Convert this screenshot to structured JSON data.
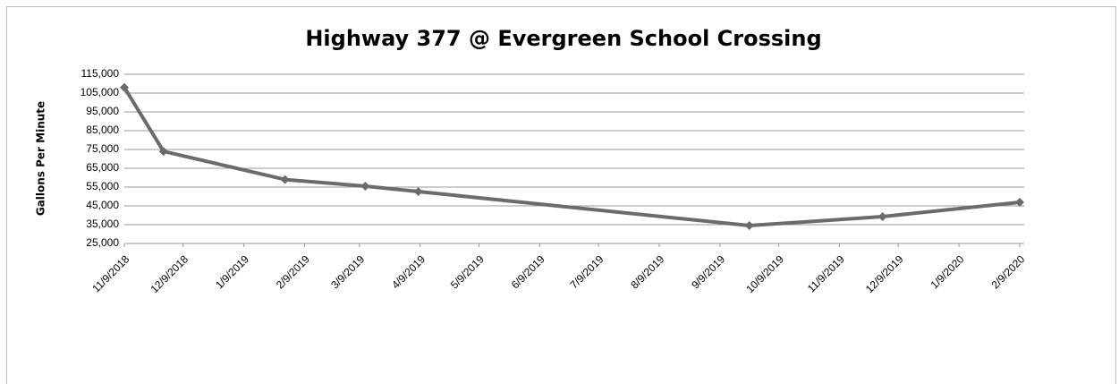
{
  "chart_data": {
    "type": "line",
    "title": "Highway 377 @ Evergreen School Crossing",
    "y_label": "Gallons Per Minute",
    "x": [
      "11/9/2018",
      "11/29/2018",
      "1/30/2019",
      "3/12/2019",
      "4/8/2019",
      "9/24/2019",
      "12/1/2019",
      "2/9/2020"
    ],
    "series": [
      {
        "name": "Gallons Per Minute",
        "color": "#6b6b6b",
        "values": [
          108000,
          74000,
          59000,
          55500,
          52600,
          34500,
          39300,
          46900
        ]
      }
    ],
    "xlim": [
      "11/9/2018",
      "2/9/2020"
    ],
    "xticks": [
      "11/9/2018",
      "12/9/2018",
      "1/9/2019",
      "2/9/2019",
      "3/9/2019",
      "4/9/2019",
      "5/9/2019",
      "6/9/2019",
      "7/9/2019",
      "8/9/2019",
      "9/9/2019",
      "10/9/2019",
      "11/9/2019",
      "12/9/2019",
      "1/9/2020",
      "2/9/2020"
    ],
    "ylim": [
      25000,
      115000
    ],
    "yticks": [
      {
        "value": 25000,
        "label": "25,000"
      },
      {
        "value": 35000,
        "label": "35,000"
      },
      {
        "value": 45000,
        "label": "45,000"
      },
      {
        "value": 55000,
        "label": "55,000"
      },
      {
        "value": 65000,
        "label": "65,000"
      },
      {
        "value": 75000,
        "label": "75,000"
      },
      {
        "value": 85000,
        "label": "85,000"
      },
      {
        "value": 95000,
        "label": "95,000"
      },
      {
        "value": 105000,
        "label": "105,000"
      },
      {
        "value": 115000,
        "label": "115,000"
      }
    ],
    "grid": true
  }
}
